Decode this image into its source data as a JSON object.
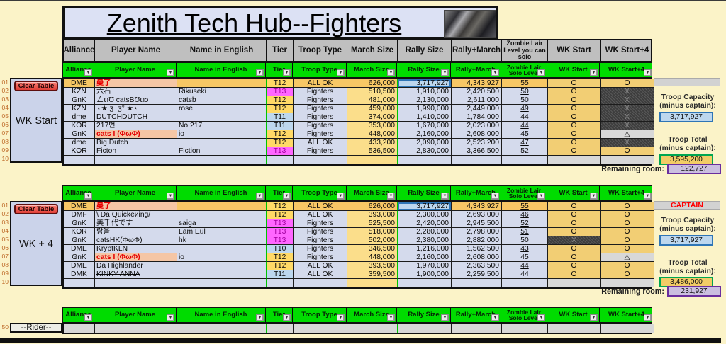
{
  "title": {
    "text": "Zenith Tech Hub--Fighters"
  },
  "header_columns": [
    "Alliance",
    "Player Name",
    "Name in English",
    "Tier",
    "Troop Type",
    "March Size",
    "Rally Size",
    "Rally+March",
    "Zombie Lair Level you can solo",
    "WK Start",
    "WK Start+4"
  ],
  "filter_columns": [
    "Alliance",
    "Player Name",
    "Name in English",
    "Tier",
    "Troop Type",
    "March Size",
    "Rally Size",
    "Rally+March",
    "Zombie Lair Solo Level",
    "WK Start",
    "WK Start+4"
  ],
  "labels": {
    "clear_button": "Clear Table",
    "capacity_line1": "Troop Capacity",
    "capacity_line2": "(minus captain):",
    "total_line1": "Troop Total",
    "total_line2": "(minus captain):",
    "remaining": "Remaining room:",
    "captain": "CAPTAIN"
  },
  "colors": {
    "accent_green": "#00DC00",
    "row_tan": "#F7C765",
    "row_lavender": "#D4DAEC",
    "tier_t12": "#FFD966",
    "tier_t13": "#FF66FF",
    "tier_blue": "#BDD7EE",
    "capacity_border": "#2E75B6",
    "total_border": "#00A651",
    "remaining_border": "#6A2E9E",
    "captain_text": "#FF0000",
    "x_cell": "#3D3D3D"
  },
  "tables": [
    {
      "label": "WK Start",
      "has_clear": true,
      "rows": [
        {
          "num": "01",
          "alliance": "DME",
          "player": "曼了",
          "player_style": "peach",
          "name_en": "",
          "tier": "T12",
          "tier_style": "t12",
          "troop": "ALL OK",
          "march": "626,000",
          "rally": "3,717,927",
          "rally_style": "bluebox",
          "rm": "4,343,927",
          "lair": "55",
          "wk1": "O",
          "wk1_style": "o",
          "wk4": "O",
          "wk4_style": "o",
          "row_style": "tan"
        },
        {
          "num": "02",
          "alliance": "KZN",
          "player": "六石",
          "player_style": "",
          "name_en": "Rikuseki",
          "tier": "T13",
          "tier_style": "t13",
          "troop": "Fighters",
          "march": "510,500",
          "rally": "1,910,000",
          "rally_style": "",
          "rm": "2,420,500",
          "lair": "50",
          "wk1": "O",
          "wk1_style": "o",
          "wk4": "X",
          "wk4_style": "x",
          "row_style": "lav"
        },
        {
          "num": "03",
          "alliance": "GnK",
          "player": "ㄥດƱ catsBƱດɔ",
          "player_style": "",
          "name_en": "catsb",
          "tier": "T12",
          "tier_style": "t12",
          "troop": "Fighters",
          "march": "481,000",
          "rally": "2,130,000",
          "rally_style": "",
          "rm": "2,611,000",
          "lair": "50",
          "wk1": "O",
          "wk1_style": "o",
          "wk4": "X",
          "wk4_style": "x",
          "row_style": "lav"
        },
        {
          "num": "04",
          "alliance": "KZN",
          "player": "⋆★ ʒ−ʒ° ★⋆",
          "player_style": "",
          "name_en": "rose",
          "tier": "T12",
          "tier_style": "t12",
          "troop": "Fighters",
          "march": "459,000",
          "rally": "1,990,000",
          "rally_style": "",
          "rm": "2,449,000",
          "lair": "49",
          "wk1": "O",
          "wk1_style": "o",
          "wk4": "X",
          "wk4_style": "x",
          "row_style": "lav"
        },
        {
          "num": "05",
          "alliance": "dme",
          "player": "DUTCHDUTCH",
          "player_style": "",
          "name_en": "",
          "tier": "T11",
          "tier_style": "tblue",
          "troop": "Fighters",
          "march": "374,000",
          "rally": "1,410,000",
          "rally_style": "",
          "rm": "1,784,000",
          "lair": "44",
          "wk1": "O",
          "wk1_style": "o",
          "wk4": "X",
          "wk4_style": "x",
          "row_style": "lav"
        },
        {
          "num": "06",
          "alliance": "KOR",
          "player": "217번",
          "player_style": "",
          "name_en": "No.217",
          "tier": "T11",
          "tier_style": "tblue",
          "troop": "Fighters",
          "march": "353,000",
          "rally": "1,670,000",
          "rally_style": "",
          "rm": "2,023,000",
          "lair": "44",
          "wk1": "O",
          "wk1_style": "o",
          "wk4": "X",
          "wk4_style": "x",
          "row_style": "lav"
        },
        {
          "num": "07",
          "alliance": "GnK",
          "player": "cats I (ΦωΦ)",
          "player_style": "peach",
          "name_en": "io",
          "tier": "T12",
          "tier_style": "t12",
          "troop": "Fighters",
          "march": "448,000",
          "rally": "2,160,000",
          "rally_style": "",
          "rm": "2,608,000",
          "lair": "45",
          "wk1": "O",
          "wk1_style": "o",
          "wk4": "△",
          "wk4_style": "tri",
          "row_style": "lav"
        },
        {
          "num": "08",
          "alliance": "dme",
          "player": "Big Dutch",
          "player_style": "",
          "name_en": "",
          "tier": "T12",
          "tier_style": "t12",
          "troop": "ALL OK",
          "march": "433,200",
          "rally": "2,090,000",
          "rally_style": "",
          "rm": "2,523,200",
          "lair": "47",
          "wk1": "O",
          "wk1_style": "o",
          "wk4": "X",
          "wk4_style": "x",
          "row_style": "lav"
        },
        {
          "num": "09",
          "alliance": "KOR",
          "player": "Ficton",
          "player_style": "",
          "name_en": "Fiction",
          "tier": "T13",
          "tier_style": "t13",
          "troop": "Fighters",
          "march": "536,500",
          "rally": "2,830,000",
          "rally_style": "",
          "rm": "3,366,500",
          "lair": "52",
          "wk1": "O",
          "wk1_style": "o",
          "wk4": "O",
          "wk4_style": "o",
          "row_style": "lav"
        },
        {
          "num": "10",
          "alliance": "",
          "player": "",
          "player_style": "",
          "name_en": "",
          "tier": "",
          "tier_style": "",
          "troop": "",
          "march": "",
          "rally": "",
          "rally_style": "",
          "rm": "",
          "lair": "",
          "wk1": "",
          "wk1_style": "none",
          "wk4": "",
          "wk4_style": "none",
          "row_style": "lav"
        }
      ],
      "panel": {
        "captain": "",
        "capacity": "3,717,927",
        "total": "3,595,200",
        "remaining": "122,727"
      }
    },
    {
      "label": "WK + 4",
      "has_clear": true,
      "rows": [
        {
          "num": "01",
          "alliance": "DME",
          "player": "曼了",
          "player_style": "peach",
          "name_en": "",
          "tier": "T12",
          "tier_style": "t12",
          "troop": "ALL OK",
          "march": "626,000",
          "rally": "3,717,927",
          "rally_style": "bluebox",
          "rm": "4,343,927",
          "lair": "55",
          "wk1": "O",
          "wk1_style": "o",
          "wk4": "O",
          "wk4_style": "o",
          "row_style": "tan"
        },
        {
          "num": "02",
          "alliance": "DMF",
          "player": "\\ Da Quickeиing/",
          "player_style": "",
          "name_en": "",
          "tier": "T12",
          "tier_style": "t12",
          "troop": "ALL OK",
          "march": "393,000",
          "rally": "2,300,000",
          "rally_style": "",
          "rm": "2,693,000",
          "lair": "46",
          "wk1": "O",
          "wk1_style": "o",
          "wk4": "O",
          "wk4_style": "o",
          "row_style": "lav"
        },
        {
          "num": "03",
          "alliance": "GnK",
          "player": "美千代です",
          "player_style": "",
          "name_en": "saiga",
          "tier": "T13",
          "tier_style": "t13",
          "troop": "Fighters",
          "march": "525,500",
          "rally": "2,420,000",
          "rally_style": "",
          "rm": "2,945,500",
          "lair": "52",
          "wk1": "O",
          "wk1_style": "o",
          "wk4": "O",
          "wk4_style": "o",
          "row_style": "lav"
        },
        {
          "num": "04",
          "alliance": "KOR",
          "player": "람을",
          "player_style": "",
          "name_en": "Lam Eul",
          "tier": "T13",
          "tier_style": "t13",
          "troop": "Fighters",
          "march": "518,000",
          "rally": "2,280,000",
          "rally_style": "",
          "rm": "2,798,000",
          "lair": "51",
          "wk1": "O",
          "wk1_style": "o",
          "wk4": "O",
          "wk4_style": "o",
          "row_style": "lav"
        },
        {
          "num": "05",
          "alliance": "GnK",
          "player": "catsHK(ΦωΦ)",
          "player_style": "",
          "name_en": "hk",
          "tier": "T13",
          "tier_style": "t13",
          "troop": "Fighters",
          "march": "502,000",
          "rally": "2,380,000",
          "rally_style": "",
          "rm": "2,882,000",
          "lair": "50",
          "wk1": "X",
          "wk1_style": "x",
          "wk4": "O",
          "wk4_style": "o",
          "row_style": "lav"
        },
        {
          "num": "06",
          "alliance": "DME",
          "player": "KryptKLN",
          "player_style": "",
          "name_en": "",
          "tier": "T10",
          "tier_style": "tblue",
          "troop": "Fighters",
          "march": "346,500",
          "rally": "1,216,000",
          "rally_style": "",
          "rm": "1,562,500",
          "lair": "43",
          "wk1": "O",
          "wk1_style": "o",
          "wk4": "O",
          "wk4_style": "o",
          "row_style": "lav"
        },
        {
          "num": "07",
          "alliance": "GnK",
          "player": "cats I (ΦωΦ)",
          "player_style": "peach",
          "name_en": "io",
          "tier": "T12",
          "tier_style": "t12",
          "troop": "Fighters",
          "march": "448,000",
          "rally": "2,160,000",
          "rally_style": "",
          "rm": "2,608,000",
          "lair": "45",
          "wk1": "O",
          "wk1_style": "o",
          "wk4": "△",
          "wk4_style": "tri",
          "row_style": "lav"
        },
        {
          "num": "08",
          "alliance": "DME",
          "player": "Da Highlander",
          "player_style": "",
          "name_en": "",
          "tier": "T12",
          "tier_style": "t12",
          "troop": "ALL OK",
          "march": "393,500",
          "rally": "1,970,000",
          "rally_style": "",
          "rm": "2,363,500",
          "lair": "44",
          "wk1": "O",
          "wk1_style": "o",
          "wk4": "O",
          "wk4_style": "o",
          "row_style": "lav"
        },
        {
          "num": "09",
          "alliance": "DMK",
          "player": "KINKY ANNA",
          "player_style": "strike",
          "name_en": "",
          "tier": "T11",
          "tier_style": "tblue",
          "troop": "ALL OK",
          "march": "359,500",
          "rally": "1,900,000",
          "rally_style": "",
          "rm": "2,259,500",
          "lair": "44",
          "wk1": "O",
          "wk1_style": "o",
          "wk4": "O",
          "wk4_style": "o",
          "row_style": "lav"
        },
        {
          "num": "10",
          "alliance": "",
          "player": "",
          "player_style": "",
          "name_en": "",
          "tier": "",
          "tier_style": "",
          "troop": "",
          "march": "",
          "rally": "",
          "rally_style": "",
          "rm": "",
          "lair": "",
          "wk1": "",
          "wk1_style": "none",
          "wk4": "",
          "wk4_style": "none",
          "row_style": "lav"
        }
      ],
      "panel": {
        "captain": "CAPTAIN",
        "capacity": "3,717,927",
        "total": "3,486,000",
        "remaining": "231,927"
      }
    },
    {
      "label": "--Rider--",
      "has_clear": false,
      "rows": [
        {
          "num": "50",
          "alliance": "",
          "player": "",
          "player_style": "",
          "name_en": "",
          "tier": "",
          "tier_style": "",
          "troop": "",
          "march": "",
          "rally": "",
          "rally_style": "",
          "rm": "",
          "lair": "",
          "wk1": "",
          "wk1_style": "none",
          "wk4": "",
          "wk4_style": "none",
          "row_style": "rider"
        }
      ],
      "panel": null
    }
  ]
}
